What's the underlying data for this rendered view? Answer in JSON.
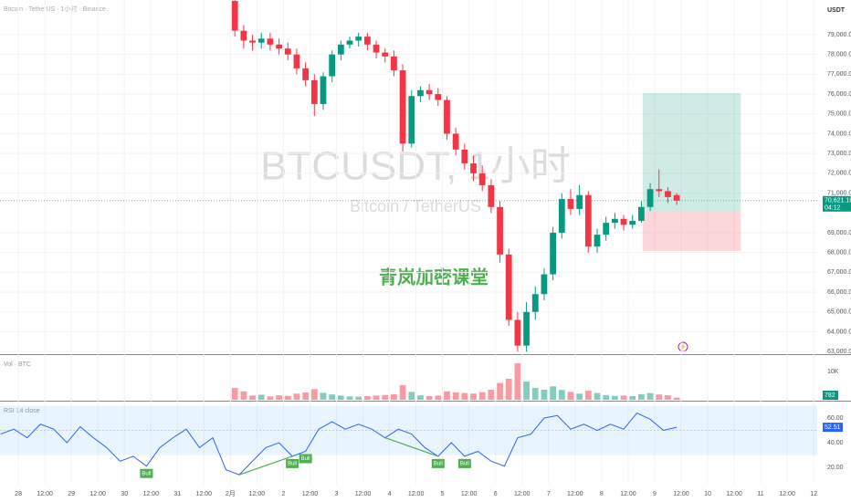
{
  "chart_data": [
    {
      "type": "candlestick",
      "title": "BTCUSDT, 1小时",
      "subtitle": "Bitcoin / TetherUS",
      "header": "Bitcoin · TetherUS · 1小时 · Binance",
      "currency": "USDT",
      "annotation": "青岚加密课堂",
      "up_color": "#089981",
      "down_color": "#f23645",
      "grid": true,
      "x": [
        98,
        102,
        106,
        110,
        114,
        118,
        122,
        126,
        130,
        134,
        138,
        142,
        146,
        150,
        154,
        158,
        162,
        166,
        170,
        174,
        178,
        182,
        186,
        190,
        194,
        198,
        202,
        206,
        210,
        214,
        218,
        222,
        226,
        230,
        234,
        238,
        242,
        246,
        250,
        254,
        258,
        262,
        266,
        270,
        274,
        278,
        282,
        286,
        290,
        294,
        298
      ],
      "open": [
        80700,
        79200,
        78700,
        78600,
        78800,
        78500,
        78300,
        78000,
        77300,
        76700,
        75500,
        76900,
        78000,
        78500,
        78700,
        78900,
        78500,
        78100,
        77900,
        77200,
        73500,
        75900,
        76200,
        76000,
        75700,
        74000,
        73200,
        72500,
        72000,
        71400,
        70300,
        67900,
        64600,
        63300,
        65000,
        65900,
        66900,
        69000,
        70700,
        70200,
        70900,
        68300,
        68900,
        69500,
        69700,
        69400,
        69600,
        70300,
        71200,
        71100,
        70900
      ],
      "high": [
        80750,
        79500,
        79000,
        79100,
        79100,
        78800,
        78600,
        78300,
        77600,
        77000,
        77100,
        78200,
        78700,
        78900,
        79100,
        79100,
        78700,
        78300,
        78200,
        77500,
        76200,
        76400,
        76500,
        76300,
        75900,
        74300,
        73500,
        72900,
        72400,
        71700,
        70600,
        68200,
        65000,
        65500,
        66300,
        67200,
        69300,
        71000,
        71200,
        71400,
        71100,
        69200,
        69800,
        70000,
        69900,
        69900,
        70600,
        71500,
        72200,
        71300,
        71000
      ],
      "low": [
        78900,
        78300,
        78200,
        78300,
        78200,
        78000,
        77700,
        77000,
        76400,
        74900,
        75200,
        76600,
        77700,
        78300,
        78400,
        78200,
        77800,
        77600,
        76900,
        73100,
        73300,
        75600,
        75700,
        75400,
        73700,
        72900,
        72200,
        71600,
        71100,
        70000,
        67500,
        64300,
        63000,
        63000,
        64600,
        65600,
        66600,
        68700,
        69900,
        69900,
        68000,
        68000,
        68600,
        69200,
        69100,
        69200,
        69500,
        70100,
        70800,
        70500,
        70400
      ],
      "close": [
        79200,
        78700,
        78600,
        78800,
        78500,
        78300,
        78000,
        77300,
        76700,
        75500,
        76900,
        78000,
        78500,
        78700,
        78900,
        78500,
        78100,
        77900,
        77200,
        73500,
        75900,
        76200,
        76000,
        75700,
        74000,
        73200,
        72500,
        72000,
        71400,
        70300,
        67900,
        64600,
        63300,
        65000,
        65900,
        66900,
        69000,
        70700,
        70200,
        70900,
        68300,
        68900,
        69500,
        69700,
        69400,
        69600,
        70300,
        71200,
        71100,
        70800,
        70621.18
      ],
      "xlim": [
        -8.3,
        361.6
      ],
      "xticks": [
        {
          "value": 0,
          "label": "28"
        },
        {
          "value": 12,
          "label": "12:00"
        },
        {
          "value": 24,
          "label": "29"
        },
        {
          "value": 36,
          "label": "12:00"
        },
        {
          "value": 48,
          "label": "30"
        },
        {
          "value": 60,
          "label": "12:00"
        },
        {
          "value": 72,
          "label": "31"
        },
        {
          "value": 84,
          "label": "12:00"
        },
        {
          "value": 96,
          "label": "2月"
        },
        {
          "value": 108,
          "label": "12:00"
        },
        {
          "value": 120,
          "label": "2"
        },
        {
          "value": 132,
          "label": "12:00"
        },
        {
          "value": 144,
          "label": "3"
        },
        {
          "value": 156,
          "label": "12:00"
        },
        {
          "value": 168,
          "label": "4"
        },
        {
          "value": 180,
          "label": "12:00"
        },
        {
          "value": 192,
          "label": "5"
        },
        {
          "value": 204,
          "label": "12:00"
        },
        {
          "value": 216,
          "label": "6"
        },
        {
          "value": 228,
          "label": "12:00"
        },
        {
          "value": 240,
          "label": "7"
        },
        {
          "value": 252,
          "label": "12:00"
        },
        {
          "value": 264,
          "label": "8"
        },
        {
          "value": 276,
          "label": "12:00"
        },
        {
          "value": 288,
          "label": "9"
        },
        {
          "value": 300,
          "label": "12:00"
        },
        {
          "value": 312,
          "label": "10"
        },
        {
          "value": 324,
          "label": "12:00"
        },
        {
          "value": 336,
          "label": "11"
        },
        {
          "value": 348,
          "label": "12:00"
        },
        {
          "value": 360,
          "label": "12"
        }
      ],
      "ylim": [
        62870,
        80750
      ],
      "yticks": [
        {
          "value": 63000,
          "label": "63,000.00"
        },
        {
          "value": 64000,
          "label": "64,000.00"
        },
        {
          "value": 65000,
          "label": "65,000.00"
        },
        {
          "value": 66000,
          "label": "66,000.00"
        },
        {
          "value": 67000,
          "label": "67,000.00"
        },
        {
          "value": 68000,
          "label": "68,000.00"
        },
        {
          "value": 69000,
          "label": "69,000.00"
        },
        {
          "value": 71000,
          "label": "71,000.00"
        },
        {
          "value": 72000,
          "label": "72,000.00"
        },
        {
          "value": 73000,
          "label": "73,000.00"
        },
        {
          "value": 74000,
          "label": "74,000.00"
        },
        {
          "value": 75000,
          "label": "75,000.00"
        },
        {
          "value": 76000,
          "label": "76,000.00"
        },
        {
          "value": 77000,
          "label": "77,000.00"
        },
        {
          "value": 78000,
          "label": "78,000.00"
        },
        {
          "value": 79000,
          "label": "79,000.00"
        }
      ],
      "last_price": {
        "value": 70621.18,
        "label": "70,621.18"
      },
      "countdown": "04:12",
      "position": {
        "x": [
          282.6,
          327
        ],
        "entry": 70060,
        "target": 76050,
        "stop": 68080
      }
    },
    {
      "type": "bar",
      "legend": "Vol · BTC",
      "x": [
        98,
        102,
        106,
        110,
        114,
        118,
        122,
        126,
        130,
        134,
        138,
        142,
        146,
        150,
        154,
        158,
        162,
        166,
        170,
        174,
        178,
        182,
        186,
        190,
        194,
        198,
        202,
        206,
        210,
        214,
        218,
        222,
        226,
        230,
        234,
        238,
        242,
        246,
        250,
        254,
        258,
        262,
        266,
        270,
        274,
        278,
        282,
        286,
        290,
        294,
        298
      ],
      "values": [
        4200,
        3000,
        1500,
        1800,
        1200,
        1600,
        1400,
        2200,
        2600,
        3800,
        2500,
        1900,
        1500,
        1200,
        1100,
        1300,
        1500,
        1700,
        2000,
        5200,
        2800,
        1600,
        1300,
        1500,
        3000,
        2600,
        2400,
        2200,
        2700,
        3600,
        6000,
        7500,
        13000,
        6500,
        4200,
        3600,
        4800,
        3500,
        2800,
        2200,
        3200,
        2400,
        1700,
        1400,
        1500,
        1300,
        2000,
        2400,
        1900,
        1600,
        782
      ],
      "ylim": [
        0,
        15000
      ],
      "yticks": [
        {
          "value": 10000,
          "label": "10K"
        }
      ]
    },
    {
      "type": "line",
      "legend": "RSI 14 close",
      "color": "#2962ff",
      "x": [
        -8,
        -2,
        4,
        10,
        16,
        22,
        28,
        34,
        40,
        46,
        52,
        58,
        64,
        70,
        76,
        82,
        88,
        94,
        100,
        106,
        112,
        118,
        124,
        130,
        136,
        142,
        148,
        154,
        160,
        166,
        172,
        178,
        184,
        190,
        196,
        202,
        208,
        214,
        220,
        226,
        232,
        238,
        244,
        250,
        256,
        262,
        268,
        274,
        280,
        286,
        292,
        298
      ],
      "values": [
        47,
        51,
        44,
        55,
        51,
        40,
        53,
        44,
        36,
        25,
        29,
        21,
        36,
        44,
        51,
        36,
        44,
        18,
        14,
        25,
        36,
        40,
        29,
        33,
        51,
        57,
        51,
        55,
        51,
        44,
        51,
        47,
        36,
        29,
        40,
        29,
        33,
        25,
        21,
        44,
        47,
        60,
        62,
        51,
        55,
        50,
        55,
        51,
        64,
        59,
        50,
        52.51
      ],
      "ylim": [
        7,
        70
      ],
      "yticks": [
        {
          "value": 20,
          "label": "20.00"
        },
        {
          "value": 40,
          "label": "40.00"
        },
        {
          "value": 60,
          "label": "60.00"
        }
      ],
      "band": [
        30,
        70
      ],
      "midline": 50,
      "annotations": [
        {
          "x": 58,
          "text": "Bull"
        },
        {
          "x": 124,
          "text": "Bull"
        },
        {
          "x": 130,
          "text": "Bull"
        },
        {
          "x": 190,
          "text": "Bull"
        },
        {
          "x": 202,
          "text": "Bull"
        }
      ],
      "divergences": [
        [
          100,
          124
        ],
        [
          166,
          190
        ]
      ]
    }
  ]
}
